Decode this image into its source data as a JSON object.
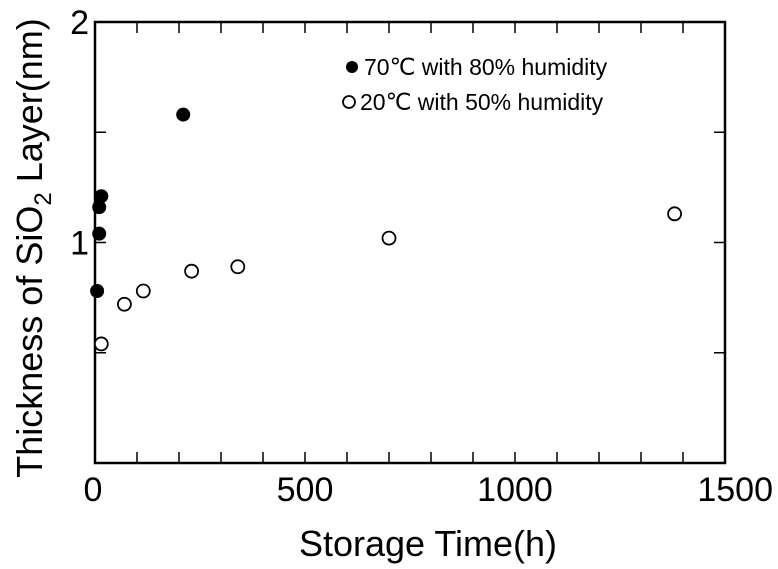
{
  "chart_data": {
    "type": "scatter",
    "title": "",
    "xlabel": "Storage Time(h)",
    "ylabel": {
      "prefix": "Thickness of SiO",
      "sub": "2",
      "suffix": " Layer(nm)"
    },
    "xlim": [
      0,
      1500
    ],
    "ylim": [
      0,
      2
    ],
    "x_ticks": [
      0,
      500,
      1000,
      1500
    ],
    "y_ticks": [
      1,
      2
    ],
    "x_minor_step": 100,
    "y_minor_step": 0.5,
    "grid": false,
    "legend_position": "top-right",
    "series": [
      {
        "name": "70℃ with 80% humidity",
        "marker": "filled-circle",
        "x": [
          5,
          10,
          10,
          15,
          210
        ],
        "y": [
          0.78,
          1.04,
          1.16,
          1.21,
          1.58
        ]
      },
      {
        "name": "20℃ with 50% humidity",
        "marker": "open-circle",
        "x": [
          15,
          70,
          115,
          230,
          340,
          700,
          1380
        ],
        "y": [
          0.54,
          0.72,
          0.78,
          0.87,
          0.89,
          1.02,
          1.13
        ]
      }
    ]
  }
}
